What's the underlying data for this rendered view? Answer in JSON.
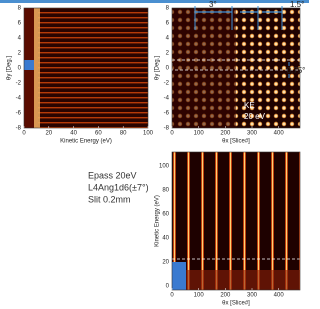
{
  "panels": [
    {
      "ylabel": "θy [Deg.]",
      "xlabel": "Kinetic Energy (eV)",
      "xticks": [
        "0",
        "20",
        "40",
        "60",
        "80",
        "100"
      ],
      "yticks": [
        "8",
        "6",
        "4",
        "2",
        "0",
        "-2",
        "-4",
        "-6",
        "-8"
      ]
    },
    {
      "ylabel": "θy [Deg.]",
      "xlabel": "θx [Slice#]",
      "xticks": [
        "0",
        "100",
        "200",
        "300",
        "400"
      ],
      "yticks": [
        "8",
        "6",
        "4",
        "2",
        "0",
        "-2",
        "-4",
        "-6",
        "-8"
      ],
      "annotations": [
        "3°",
        "1.5°",
        "0.75°",
        "KE",
        "20 eV"
      ]
    },
    {
      "ylabel": "Kinetic Energy (eV)",
      "xlabel": "θx [Slice#]",
      "xticks": [
        "0",
        "100",
        "200",
        "300",
        "400"
      ],
      "yticks": [
        "100",
        "80",
        "60",
        "40",
        "20",
        "0"
      ]
    }
  ],
  "notes": [
    "Epass 20eV",
    "L4Ang1d6(±7°)",
    "Slit 0.2mm"
  ]
}
